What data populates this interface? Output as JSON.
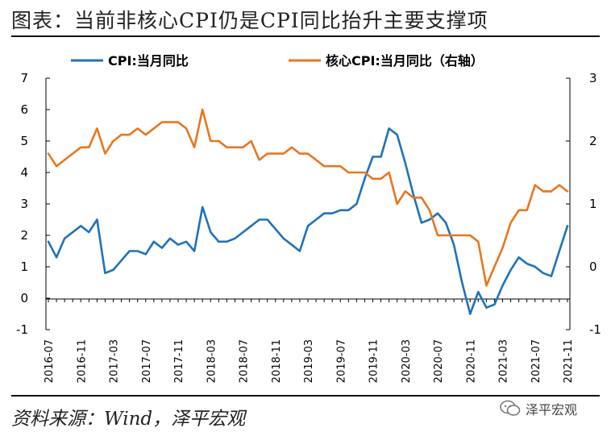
{
  "header": {
    "title": "图表：当前非核心CPI仍是CPI同比抬升主要支撑项"
  },
  "footer": {
    "source": "资料来源：Wind，泽平宏观",
    "watermark": "泽平宏观"
  },
  "colors": {
    "cpi": "#1f72b8",
    "core": "#e8761f",
    "axis": "#000000"
  },
  "chart_data": {
    "type": "line",
    "title": "",
    "xlabel": "",
    "ylabel": "",
    "ylim": [
      -1,
      7
    ],
    "y2lim": [
      -1,
      3
    ],
    "legend": "top",
    "grid": false,
    "x": [
      "2016-07",
      "2016-08",
      "2016-09",
      "2016-10",
      "2016-11",
      "2016-12",
      "2017-01",
      "2017-02",
      "2017-03",
      "2017-04",
      "2017-05",
      "2017-06",
      "2017-07",
      "2017-08",
      "2017-09",
      "2017-10",
      "2017-11",
      "2017-12",
      "2018-01",
      "2018-02",
      "2018-03",
      "2018-04",
      "2018-05",
      "2018-06",
      "2018-07",
      "2018-08",
      "2018-09",
      "2018-10",
      "2018-11",
      "2018-12",
      "2019-01",
      "2019-02",
      "2019-03",
      "2019-04",
      "2019-05",
      "2019-06",
      "2019-07",
      "2019-08",
      "2019-09",
      "2019-10",
      "2019-11",
      "2019-12",
      "2020-01",
      "2020-02",
      "2020-03",
      "2020-04",
      "2020-05",
      "2020-06",
      "2020-07",
      "2020-08",
      "2020-09",
      "2020-10",
      "2020-11",
      "2020-12",
      "2021-01",
      "2021-02",
      "2021-03",
      "2021-04",
      "2021-05",
      "2021-06",
      "2021-07",
      "2021-08",
      "2021-09",
      "2021-10",
      "2021-11"
    ],
    "x_tick_labels": [
      "2016-07",
      "2016-11",
      "2017-03",
      "2017-07",
      "2017-11",
      "2018-03",
      "2018-07",
      "2018-11",
      "2019-03",
      "2019-07",
      "2019-11",
      "2020-03",
      "2020-07",
      "2020-11",
      "2021-03",
      "2021-07",
      "2021-11"
    ],
    "y_ticks": [
      -1,
      0,
      1,
      2,
      3,
      4,
      5,
      6,
      7
    ],
    "y2_ticks": [
      -1,
      0,
      1,
      2,
      3
    ],
    "series": [
      {
        "name": "CPI:当月同比",
        "axis": "left",
        "values": [
          1.8,
          1.3,
          1.9,
          2.1,
          2.3,
          2.1,
          2.5,
          0.8,
          0.9,
          1.2,
          1.5,
          1.5,
          1.4,
          1.8,
          1.6,
          1.9,
          1.7,
          1.8,
          1.5,
          2.9,
          2.1,
          1.8,
          1.8,
          1.9,
          2.1,
          2.3,
          2.5,
          2.5,
          2.2,
          1.9,
          1.7,
          1.5,
          2.3,
          2.5,
          2.7,
          2.7,
          2.8,
          2.8,
          3.0,
          3.8,
          4.5,
          4.5,
          5.4,
          5.2,
          4.3,
          3.3,
          2.4,
          2.5,
          2.7,
          2.4,
          1.7,
          0.5,
          -0.5,
          0.2,
          -0.3,
          -0.2,
          0.4,
          0.9,
          1.3,
          1.1,
          1.0,
          0.8,
          0.7,
          1.5,
          2.3
        ]
      },
      {
        "name": "核心CPI:当月同比（右轴）",
        "axis": "right",
        "values": [
          1.8,
          1.6,
          1.7,
          1.8,
          1.9,
          1.9,
          2.2,
          1.8,
          2.0,
          2.1,
          2.1,
          2.2,
          2.1,
          2.2,
          2.3,
          2.3,
          2.3,
          2.2,
          1.9,
          2.5,
          2.0,
          2.0,
          1.9,
          1.9,
          1.9,
          2.0,
          1.7,
          1.8,
          1.8,
          1.8,
          1.9,
          1.8,
          1.8,
          1.7,
          1.6,
          1.6,
          1.6,
          1.5,
          1.5,
          1.5,
          1.4,
          1.4,
          1.5,
          1.0,
          1.2,
          1.1,
          1.1,
          0.9,
          0.5,
          0.5,
          0.5,
          0.5,
          0.5,
          0.4,
          -0.3,
          0.0,
          0.3,
          0.7,
          0.9,
          0.9,
          1.3,
          1.2,
          1.2,
          1.3,
          1.2
        ]
      }
    ]
  }
}
